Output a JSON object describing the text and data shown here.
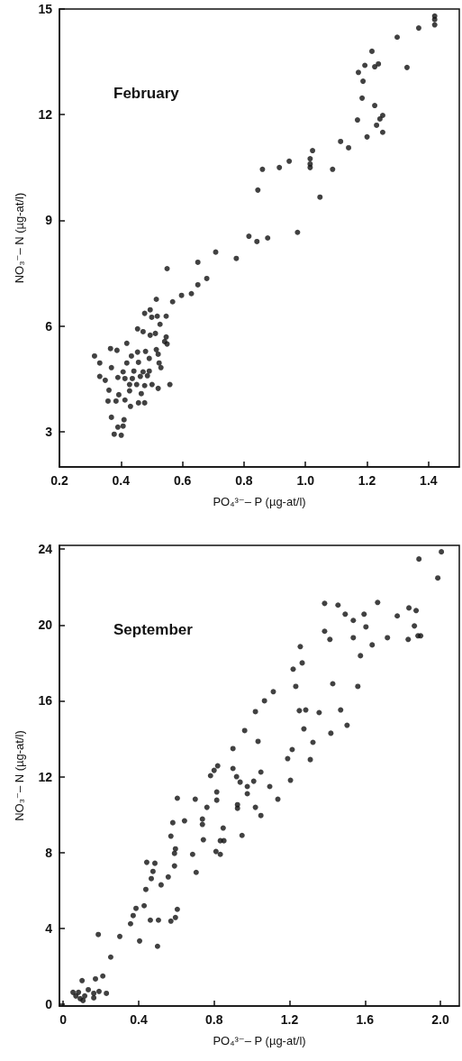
{
  "chart_data": [
    {
      "type": "scatter",
      "title": "February",
      "xlabel": "PO₄³⁻– P (µg-at/l)",
      "ylabel": "NO₃⁻– N (µg-at/l)",
      "xlim": [
        0.2,
        1.5
      ],
      "ylim": [
        2,
        15
      ],
      "xticks": [
        0.2,
        0.4,
        0.6,
        0.8,
        {
          "value": 1,
          "label": "1.0"
        },
        1.2,
        1.4
      ],
      "yticks": [
        3,
        6,
        9,
        12,
        15
      ],
      "grid": false,
      "marker": "circle",
      "color": "#111111",
      "x": [
        1.42,
        1.42,
        1.42,
        1.368,
        1.298,
        1.216,
        1.193,
        1.225,
        1.237,
        1.33,
        1.172,
        1.187,
        1.184,
        1.225,
        1.169,
        1.251,
        1.242,
        1.231,
        1.251,
        1.2,
        1.114,
        1.14,
        1.023,
        1.015,
        1.015,
        1.015,
        0.947,
        0.915,
        0.86,
        1.088,
        0.845,
        1.047,
        0.974,
        0.816,
        0.842,
        0.877,
        0.708,
        0.775,
        0.65,
        0.55,
        0.679,
        0.65,
        0.629,
        0.597,
        0.568,
        0.515,
        0.495,
        0.477,
        0.5,
        0.518,
        0.547,
        0.527,
        0.454,
        0.472,
        0.495,
        0.512,
        0.547,
        0.542,
        0.55,
        0.419,
        0.366,
        0.387,
        0.314,
        0.331,
        0.369,
        0.454,
        0.434,
        0.48,
        0.515,
        0.521,
        0.524,
        0.53,
        0.419,
        0.457,
        0.492,
        0.407,
        0.442,
        0.472,
        0.492,
        0.331,
        0.349,
        0.39,
        0.413,
        0.437,
        0.463,
        0.486,
        0.428,
        0.451,
        0.477,
        0.501,
        0.521,
        0.559,
        0.361,
        0.428,
        0.466,
        0.393,
        0.358,
        0.384,
        0.413,
        0.457,
        0.477,
        0.431,
        0.369,
        0.41,
        0.407,
        0.39,
        0.378,
        0.401
      ],
      "values": [
        14.8,
        14.7,
        14.55,
        14.46,
        14.2,
        13.8,
        13.4,
        13.36,
        13.44,
        13.34,
        13.2,
        12.95,
        12.47,
        12.26,
        11.85,
        11.98,
        11.88,
        11.7,
        11.5,
        11.37,
        11.24,
        11.06,
        10.98,
        10.75,
        10.6,
        10.5,
        10.68,
        10.5,
        10.45,
        10.45,
        9.86,
        9.66,
        8.66,
        8.55,
        8.4,
        8.5,
        8.1,
        7.92,
        7.81,
        7.63,
        7.35,
        7.17,
        6.92,
        6.87,
        6.69,
        6.76,
        6.46,
        6.36,
        6.25,
        6.28,
        6.28,
        6.05,
        5.92,
        5.84,
        5.74,
        5.79,
        5.69,
        5.56,
        5.49,
        5.51,
        5.36,
        5.31,
        5.15,
        4.95,
        4.82,
        5.26,
        5.15,
        5.28,
        5.33,
        5.2,
        4.95,
        4.82,
        4.95,
        4.97,
        5.08,
        4.7,
        4.72,
        4.7,
        4.72,
        4.57,
        4.46,
        4.54,
        4.51,
        4.51,
        4.57,
        4.59,
        4.34,
        4.34,
        4.31,
        4.34,
        4.23,
        4.34,
        4.18,
        4.16,
        4.08,
        4.05,
        3.87,
        3.87,
        3.9,
        3.82,
        3.82,
        3.72,
        3.41,
        3.34,
        3.16,
        3.13,
        2.93,
        2.9
      ]
    },
    {
      "type": "scatter",
      "title": "September",
      "xlabel": "PO₄³⁻– P (µg-at/l)",
      "ylabel": "NO₃⁻– N (µg-at/l)",
      "xlim": [
        -0.02,
        2.1
      ],
      "ylim": [
        -0.1,
        24.2
      ],
      "xticks": [
        0,
        0.4,
        0.8,
        1.2,
        1.6,
        {
          "value": 2,
          "label": "2.0"
        }
      ],
      "yticks": [
        0,
        4,
        8,
        12,
        16,
        20,
        24
      ],
      "grid": false,
      "marker": "circle",
      "color": "#111111",
      "x": [
        2.005,
        1.886,
        1.986,
        1.386,
        1.457,
        1.667,
        1.495,
        1.595,
        1.538,
        1.833,
        1.871,
        1.771,
        1.605,
        1.862,
        1.386,
        1.414,
        1.538,
        1.719,
        1.638,
        1.829,
        1.881,
        1.895,
        1.576,
        1.257,
        1.267,
        1.219,
        1.233,
        1.429,
        1.562,
        1.114,
        1.067,
        1.019,
        1.252,
        1.286,
        1.357,
        1.471,
        0.962,
        1.276,
        1.419,
        1.505,
        1.033,
        1.324,
        0.9,
        1.214,
        1.19,
        1.31,
        0.9,
        0.781,
        0.8,
        0.819,
        0.919,
        0.938,
        0.976,
        1.01,
        1.048,
        1.095,
        1.205,
        0.814,
        0.976,
        0.605,
        0.7,
        0.814,
        1.138,
        0.762,
        0.924,
        0.924,
        1.019,
        1.048,
        0.581,
        0.643,
        0.738,
        0.738,
        0.848,
        0.571,
        0.743,
        0.833,
        0.852,
        0.948,
        0.595,
        0.59,
        0.686,
        0.81,
        0.833,
        0.443,
        0.486,
        0.59,
        0.476,
        0.705,
        0.467,
        0.557,
        0.519,
        0.438,
        0.386,
        0.429,
        0.371,
        0.357,
        0.462,
        0.505,
        0.571,
        0.595,
        0.605,
        0.186,
        0.3,
        0.405,
        0.5,
        0.252,
        0.21,
        0.171,
        0.1,
        0.133,
        0.19,
        0.229,
        0.052,
        0.081,
        0.114,
        0.162,
        0.09,
        0.105,
        0.067,
        0.162
      ],
      "values": [
        23.86,
        23.48,
        22.48,
        21.14,
        21.05,
        21.19,
        20.57,
        20.57,
        20.24,
        20.9,
        20.76,
        20.48,
        19.9,
        19.95,
        19.67,
        19.24,
        19.33,
        19.33,
        18.95,
        19.24,
        19.43,
        19.43,
        18.38,
        18.86,
        18.0,
        17.67,
        16.76,
        16.9,
        16.76,
        16.48,
        16.0,
        15.43,
        15.48,
        15.52,
        15.38,
        15.52,
        14.43,
        14.52,
        14.29,
        14.71,
        13.86,
        13.81,
        13.48,
        13.43,
        12.95,
        12.9,
        12.43,
        12.05,
        12.33,
        12.57,
        12.0,
        11.71,
        11.48,
        11.76,
        12.24,
        11.48,
        11.81,
        11.19,
        11.1,
        10.86,
        10.81,
        10.76,
        10.81,
        10.38,
        10.52,
        10.33,
        10.38,
        9.95,
        9.57,
        9.67,
        9.76,
        9.48,
        9.29,
        8.86,
        8.67,
        8.62,
        8.62,
        8.9,
        8.19,
        7.95,
        7.9,
        8.05,
        7.9,
        7.48,
        7.43,
        7.29,
        7.0,
        6.95,
        6.62,
        6.71,
        6.29,
        6.05,
        5.05,
        5.19,
        4.67,
        4.24,
        4.43,
        4.43,
        4.38,
        4.57,
        5.0,
        3.67,
        3.57,
        3.33,
        3.05,
        2.48,
        1.48,
        1.33,
        1.24,
        0.76,
        0.67,
        0.57,
        0.62,
        0.62,
        0.43,
        0.33,
        0.29,
        0.19,
        0.43,
        0.57
      ]
    }
  ]
}
